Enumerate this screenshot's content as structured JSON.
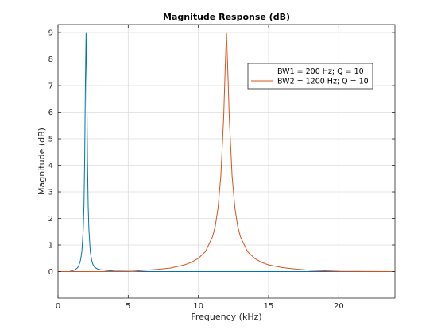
{
  "chart_data": {
    "type": "line",
    "title": "Magnitude Response (dB)",
    "xlabel": "Frequency (kHz)",
    "ylabel": "Magnitude (dB)",
    "xlim": [
      0,
      24
    ],
    "ylim": [
      -1,
      9.3
    ],
    "xticks": [
      0,
      5,
      10,
      15,
      20
    ],
    "yticks": [
      0,
      1,
      2,
      3,
      4,
      5,
      6,
      7,
      8,
      9
    ],
    "grid": true,
    "legend_position": "top-right",
    "series": [
      {
        "name": "BW1 = 200 Hz; Q = 10",
        "color": "#0072BD",
        "points": [
          [
            0,
            0
          ],
          [
            0.8,
            0
          ],
          [
            1.0,
            0.03
          ],
          [
            1.2,
            0.06
          ],
          [
            1.4,
            0.15
          ],
          [
            1.5,
            0.25
          ],
          [
            1.6,
            0.42
          ],
          [
            1.7,
            0.75
          ],
          [
            1.8,
            1.6
          ],
          [
            1.85,
            2.5
          ],
          [
            1.9,
            4.2
          ],
          [
            1.95,
            7.0
          ],
          [
            2.0,
            9.0
          ],
          [
            2.05,
            7.0
          ],
          [
            2.1,
            4.2
          ],
          [
            2.15,
            2.5
          ],
          [
            2.2,
            1.6
          ],
          [
            2.3,
            0.75
          ],
          [
            2.4,
            0.42
          ],
          [
            2.5,
            0.25
          ],
          [
            2.6,
            0.17
          ],
          [
            2.8,
            0.1
          ],
          [
            3.0,
            0.07
          ],
          [
            3.5,
            0.04
          ],
          [
            4.0,
            0.02
          ],
          [
            5.0,
            0.01
          ],
          [
            6.0,
            0
          ],
          [
            24,
            0
          ]
        ]
      },
      {
        "name": "BW2 = 1200 Hz; Q = 10",
        "color": "#D95319",
        "points": [
          [
            0,
            0
          ],
          [
            5.0,
            0
          ],
          [
            6.0,
            0.04
          ],
          [
            7.0,
            0.08
          ],
          [
            8.0,
            0.13
          ],
          [
            9.0,
            0.25
          ],
          [
            9.5,
            0.35
          ],
          [
            10.0,
            0.5
          ],
          [
            10.5,
            0.75
          ],
          [
            11.0,
            1.3
          ],
          [
            11.2,
            1.7
          ],
          [
            11.4,
            2.4
          ],
          [
            11.6,
            3.6
          ],
          [
            11.8,
            5.8
          ],
          [
            11.9,
            7.5
          ],
          [
            12.0,
            9.0
          ],
          [
            12.1,
            7.5
          ],
          [
            12.2,
            5.8
          ],
          [
            12.4,
            3.6
          ],
          [
            12.6,
            2.4
          ],
          [
            12.8,
            1.7
          ],
          [
            13.0,
            1.3
          ],
          [
            13.5,
            0.75
          ],
          [
            14.0,
            0.5
          ],
          [
            14.5,
            0.35
          ],
          [
            15.0,
            0.25
          ],
          [
            16.0,
            0.15
          ],
          [
            17.0,
            0.09
          ],
          [
            18.0,
            0.05
          ],
          [
            19.0,
            0.03
          ],
          [
            20.0,
            0.01
          ],
          [
            24,
            0
          ]
        ]
      }
    ]
  }
}
